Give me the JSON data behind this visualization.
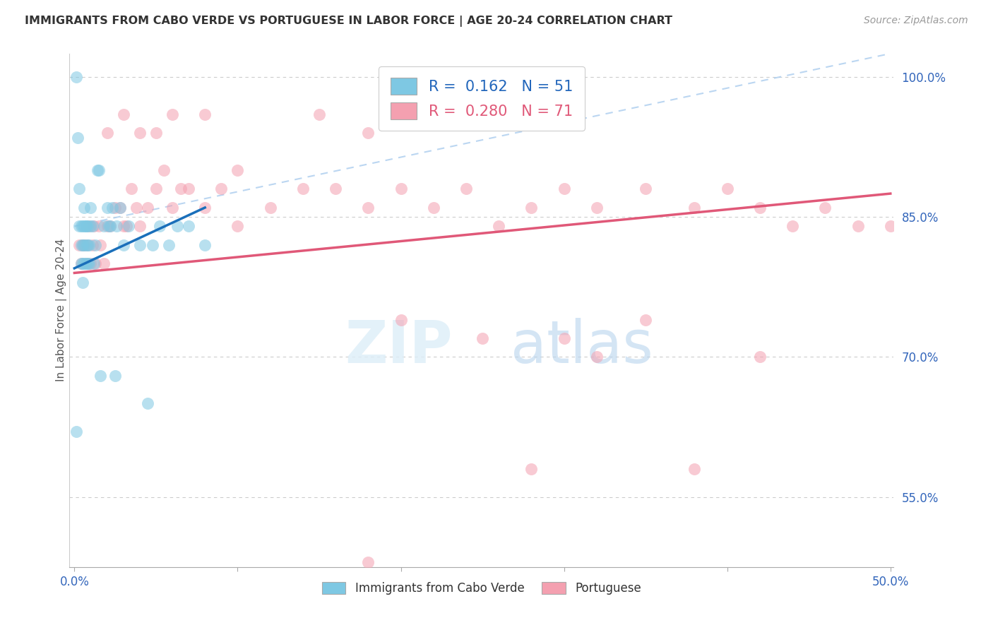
{
  "title": "IMMIGRANTS FROM CABO VERDE VS PORTUGUESE IN LABOR FORCE | AGE 20-24 CORRELATION CHART",
  "source": "Source: ZipAtlas.com",
  "ylabel": "In Labor Force | Age 20-24",
  "legend_bottom": [
    "Immigrants from Cabo Verde",
    "Portuguese"
  ],
  "r_cabo": 0.162,
  "n_cabo": 51,
  "r_port": 0.28,
  "n_port": 71,
  "xlim": [
    -0.003,
    0.502
  ],
  "ylim": [
    0.475,
    1.025
  ],
  "yticks": [
    0.55,
    0.7,
    0.85,
    1.0
  ],
  "ytick_labels": [
    "55.0%",
    "70.0%",
    "85.0%",
    "100.0%"
  ],
  "xticks": [
    0.0,
    0.1,
    0.2,
    0.3,
    0.4,
    0.5
  ],
  "xtick_labels": [
    "0.0%",
    "",
    "",
    "",
    "",
    "50.0%"
  ],
  "color_cabo": "#7ec8e3",
  "color_port": "#f4a0b0",
  "color_cabo_line": "#1a6fba",
  "color_port_line": "#e05878",
  "color_dashed": "#aaccee",
  "watermark_zip": "ZIP",
  "watermark_atlas": "atlas",
  "cabo_verde_x": [
    0.001,
    0.002,
    0.003,
    0.003,
    0.004,
    0.004,
    0.004,
    0.005,
    0.005,
    0.005,
    0.005,
    0.006,
    0.006,
    0.006,
    0.006,
    0.007,
    0.007,
    0.007,
    0.007,
    0.008,
    0.008,
    0.008,
    0.009,
    0.009,
    0.01,
    0.01,
    0.011,
    0.012,
    0.013,
    0.014,
    0.015,
    0.016,
    0.018,
    0.02,
    0.021,
    0.022,
    0.023,
    0.025,
    0.026,
    0.028,
    0.03,
    0.033,
    0.04,
    0.045,
    0.048,
    0.052,
    0.058,
    0.063,
    0.07,
    0.08,
    0.001
  ],
  "cabo_verde_y": [
    0.62,
    0.935,
    0.84,
    0.88,
    0.8,
    0.82,
    0.84,
    0.78,
    0.82,
    0.84,
    0.8,
    0.82,
    0.84,
    0.86,
    0.8,
    0.82,
    0.84,
    0.8,
    0.84,
    0.8,
    0.82,
    0.84,
    0.8,
    0.82,
    0.84,
    0.86,
    0.84,
    0.8,
    0.82,
    0.9,
    0.9,
    0.68,
    0.84,
    0.86,
    0.84,
    0.84,
    0.86,
    0.68,
    0.84,
    0.86,
    0.82,
    0.84,
    0.82,
    0.65,
    0.82,
    0.84,
    0.82,
    0.84,
    0.84,
    0.82,
    1.0
  ],
  "portuguese_x": [
    0.003,
    0.004,
    0.005,
    0.006,
    0.007,
    0.008,
    0.009,
    0.01,
    0.011,
    0.012,
    0.013,
    0.015,
    0.016,
    0.018,
    0.02,
    0.022,
    0.025,
    0.028,
    0.03,
    0.032,
    0.035,
    0.038,
    0.04,
    0.045,
    0.05,
    0.055,
    0.06,
    0.065,
    0.07,
    0.08,
    0.09,
    0.1,
    0.12,
    0.14,
    0.16,
    0.18,
    0.2,
    0.22,
    0.24,
    0.26,
    0.28,
    0.3,
    0.32,
    0.35,
    0.38,
    0.4,
    0.42,
    0.44,
    0.46,
    0.48,
    0.5,
    0.3,
    0.35,
    0.2,
    0.25,
    0.15,
    0.18,
    0.08,
    0.1,
    0.05,
    0.06,
    0.04,
    0.03,
    0.02,
    0.38,
    0.42,
    0.28,
    0.32,
    0.22,
    0.26,
    0.18
  ],
  "portuguese_y": [
    0.82,
    0.8,
    0.82,
    0.82,
    0.8,
    0.82,
    0.84,
    0.8,
    0.82,
    0.84,
    0.8,
    0.84,
    0.82,
    0.8,
    0.84,
    0.84,
    0.86,
    0.86,
    0.84,
    0.84,
    0.88,
    0.86,
    0.84,
    0.86,
    0.88,
    0.9,
    0.86,
    0.88,
    0.88,
    0.86,
    0.88,
    0.84,
    0.86,
    0.88,
    0.88,
    0.86,
    0.88,
    0.86,
    0.88,
    0.84,
    0.86,
    0.88,
    0.86,
    0.88,
    0.86,
    0.88,
    0.86,
    0.84,
    0.86,
    0.84,
    0.84,
    0.72,
    0.74,
    0.74,
    0.72,
    0.96,
    0.94,
    0.96,
    0.9,
    0.94,
    0.96,
    0.94,
    0.96,
    0.94,
    0.58,
    0.7,
    0.58,
    0.7,
    1.0,
    1.0,
    0.48
  ]
}
